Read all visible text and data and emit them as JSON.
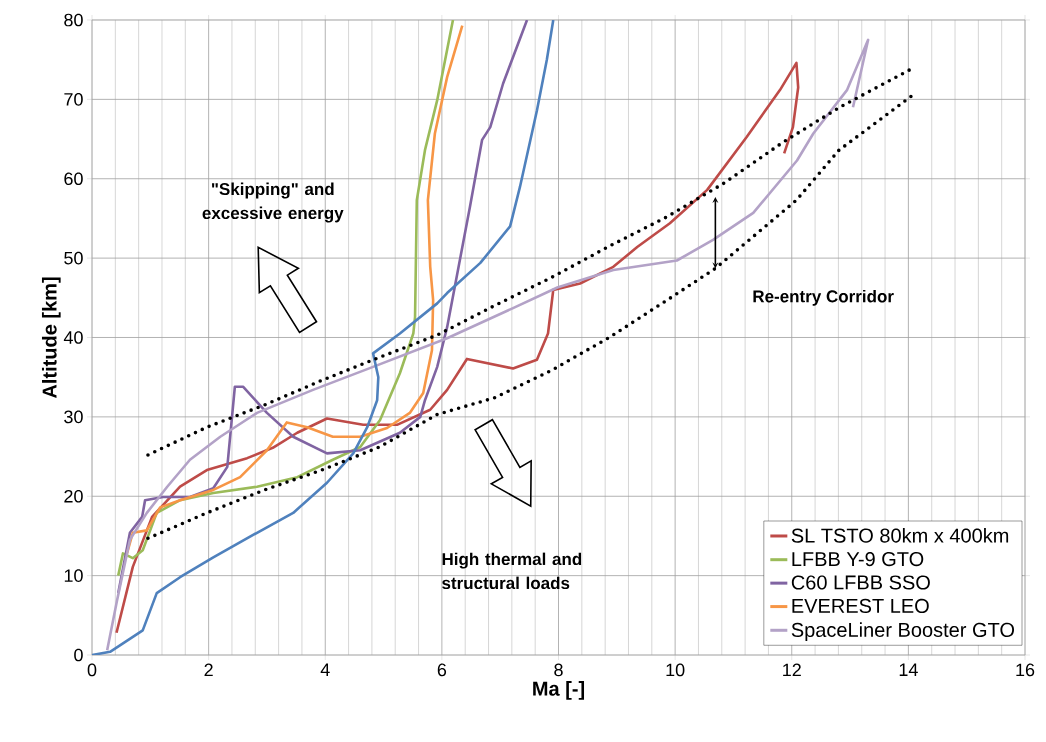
{
  "chart_data": {
    "type": "line",
    "xlabel": "Ma [-]",
    "ylabel": "Altitude [km]",
    "xlim": [
      0,
      16
    ],
    "ylim": [
      0,
      80
    ],
    "xticks": [
      0,
      2,
      4,
      6,
      8,
      10,
      12,
      14,
      16
    ],
    "yticks": [
      0,
      10,
      20,
      30,
      40,
      50,
      60,
      70,
      80
    ],
    "grid": true,
    "legend": "bottom right",
    "line_style": "solid",
    "marker": "none",
    "annotations": [
      "\"Skipping\" and excessive energy",
      "High thermal and structural loads",
      "Re-entry Corridor"
    ],
    "series": [
      {
        "name": "SL TSTO 80km x 400km",
        "color": "#be4b48",
        "x": [
          0.42,
          0.7,
          1.03,
          1.51,
          1.97,
          2.66,
          3.1,
          3.52,
          4.03,
          4.65,
          5.23,
          5.8,
          6.09,
          6.43,
          7.22,
          7.63,
          7.82,
          7.91,
          8.37,
          8.94,
          9.35,
          9.91,
          10.55,
          11.23,
          11.8,
          12.08,
          12.11,
          12.02,
          11.87
        ],
        "values": [
          2.8,
          11.1,
          17.4,
          21.2,
          23.3,
          24.8,
          26.1,
          28,
          29.8,
          29,
          29,
          30.9,
          33.4,
          37.3,
          36.1,
          37.2,
          40.5,
          46,
          46.8,
          48.9,
          51.4,
          54.4,
          58.6,
          65.3,
          71.2,
          74.6,
          71.5,
          66.5,
          63.2
        ]
      },
      {
        "name": "LFBB Y-9 GTO",
        "color": "#9bbb59",
        "x": [
          0.45,
          0.53,
          0.7,
          0.87,
          1.11,
          1.51,
          2.08,
          2.83,
          3.52,
          4.13,
          4.6,
          4.94,
          5.28,
          5.51,
          5.54,
          5.57,
          5.71,
          5.92,
          6.19
        ],
        "values": [
          10,
          12.8,
          12.2,
          13.2,
          17.9,
          19.5,
          20.4,
          21.2,
          22.4,
          24.6,
          26.2,
          29.6,
          35.5,
          40.5,
          42.6,
          57.3,
          63.6,
          69.9,
          80
        ]
      },
      {
        "name": "C60 LFBB SSO",
        "color": "#8064a2",
        "x": [
          0.45,
          0.65,
          0.86,
          0.91,
          1.22,
          1.68,
          2.08,
          2.32,
          2.45,
          2.59,
          3.0,
          3.45,
          4.03,
          4.6,
          5.28,
          5.63,
          5.71,
          5.92,
          6.09,
          6.48,
          6.69,
          6.83,
          7.05,
          7.46
        ],
        "values": [
          7.8,
          15.4,
          17.4,
          19.5,
          19.9,
          19.9,
          21,
          23.7,
          33.8,
          33.8,
          30.5,
          27.5,
          25.4,
          25.8,
          28,
          30,
          32.1,
          36.3,
          41.3,
          56.4,
          64.9,
          66.5,
          72,
          80
        ]
      },
      {
        "name": "EVEREST LEO",
        "color": "#f79646",
        "x": [
          0.6,
          0.7,
          0.94,
          1.17,
          1.51,
          2.08,
          2.54,
          3.0,
          3.34,
          3.69,
          4.13,
          4.6,
          5.06,
          5.45,
          5.68,
          5.83,
          5.85,
          5.8,
          5.76,
          5.88,
          6.09,
          6.35
        ],
        "values": [
          12.8,
          15.4,
          15.7,
          18.6,
          19.5,
          20.8,
          22.4,
          25.8,
          29.3,
          28.7,
          27.5,
          27.5,
          28.6,
          30.5,
          33,
          38.4,
          44.7,
          48.9,
          57.3,
          65.7,
          72.8,
          79.3
        ]
      },
      {
        "name": "SpaceLiner Booster GTO",
        "color": "#b3a2c7",
        "x": [
          0.26,
          0.43,
          0.65,
          0.94,
          1.29,
          1.68,
          2.2,
          2.83,
          3.79,
          4.82,
          6.09,
          7.22,
          7.98,
          8.94,
          10.03,
          10.65,
          11.34,
          12.09,
          12.37,
          12.95,
          13.31,
          13.05
        ],
        "values": [
          0.6,
          6.9,
          14.5,
          17.9,
          21.2,
          24.6,
          27.5,
          30.5,
          33.4,
          36.3,
          39.9,
          43.7,
          46.3,
          48.5,
          49.7,
          52.3,
          55.7,
          62.3,
          65.7,
          71.2,
          77.5,
          69
        ]
      },
      {
        "color": "#4f81bd",
        "x": [
          0,
          0.31,
          0.87,
          1.11,
          1.51,
          2.08,
          2.83,
          3.45,
          4.03,
          4.48,
          4.72,
          4.89,
          4.91,
          4.82,
          5.28,
          5.92,
          6.09,
          6.66,
          7.17,
          7.34,
          7.63,
          7.8,
          7.91
        ],
        "values": [
          0,
          0.4,
          3.1,
          7.8,
          9.8,
          12.3,
          15.4,
          17.9,
          21.7,
          25.4,
          28.7,
          32.1,
          35,
          38,
          40.5,
          44.3,
          45.6,
          49.4,
          54,
          59,
          68.6,
          75,
          80
        ]
      },
      {
        "color": "#000000",
        "line_style": "dotted",
        "x": [
          0.96,
          1.97,
          2.96,
          3.94,
          4.93,
          5.92,
          6.9,
          7.89,
          8.87,
          9.86,
          10.85,
          11.83,
          12.82,
          14.12
        ],
        "values": [
          25.2,
          28.7,
          31.5,
          34.6,
          37.5,
          40.3,
          44,
          47.6,
          51.5,
          55.2,
          59.5,
          64.5,
          69,
          74.1
        ]
      },
      {
        "color": "#000000",
        "line_style": "dotted",
        "x": [
          0.96,
          1.97,
          2.96,
          3.94,
          4.93,
          5.92,
          6.9,
          7.89,
          8.87,
          9.86,
          10.69,
          12.08,
          12.81,
          14.07
        ],
        "values": [
          14.7,
          17.9,
          20.8,
          23.3,
          26.2,
          30.3,
          32.4,
          35.9,
          40,
          44.7,
          48.7,
          57.3,
          63.6,
          70.5
        ]
      }
    ]
  }
}
